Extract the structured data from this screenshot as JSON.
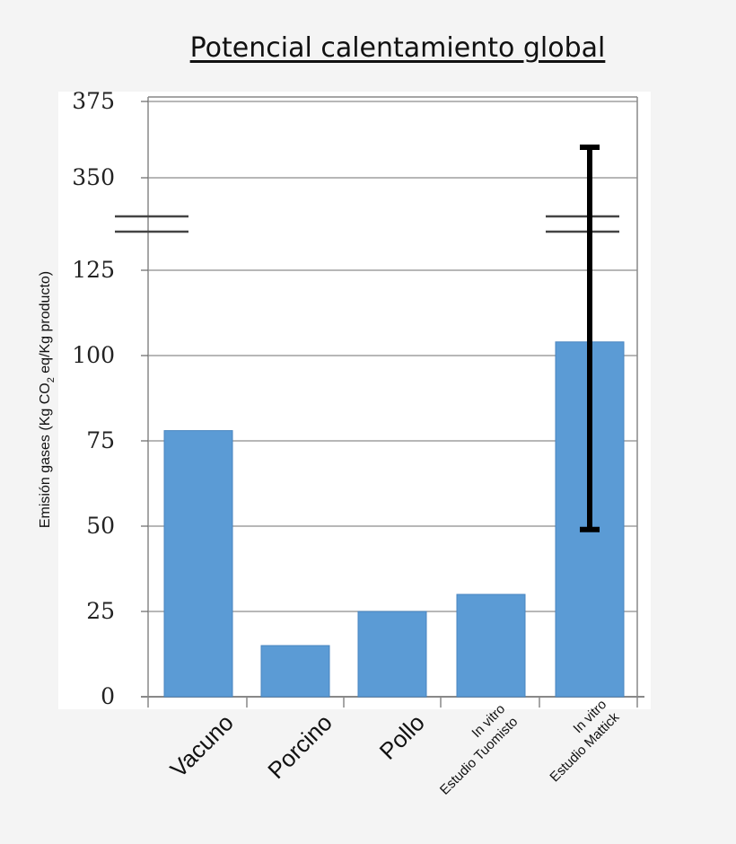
{
  "chart_data": {
    "type": "bar",
    "title": "Potencial calentamiento global",
    "ylabel_parts": [
      "Emisión gases (Kg CO",
      "2",
      " eq/Kg producto)"
    ],
    "y_ticks": [
      "0",
      "25",
      "50",
      "75",
      "100",
      "125",
      "350",
      "375"
    ],
    "axis_break": {
      "lower_max": 125,
      "upper_min": 350,
      "upper_max": 375
    },
    "categories": [
      {
        "lines": [
          "Vacuno"
        ],
        "size": "large"
      },
      {
        "lines": [
          "Porcino"
        ],
        "size": "large"
      },
      {
        "lines": [
          "Pollo"
        ],
        "size": "large"
      },
      {
        "lines": [
          "In vitro",
          "Estudio Tuomisto"
        ],
        "size": "small"
      },
      {
        "lines": [
          "In vitro",
          "Estudio Mattick"
        ],
        "size": "small"
      }
    ],
    "values": [
      78,
      15,
      25,
      30,
      104
    ],
    "error_bar": {
      "category_index": 4,
      "low": 49,
      "high": 360
    },
    "bar_color": "#5b9bd5",
    "grid": true
  }
}
